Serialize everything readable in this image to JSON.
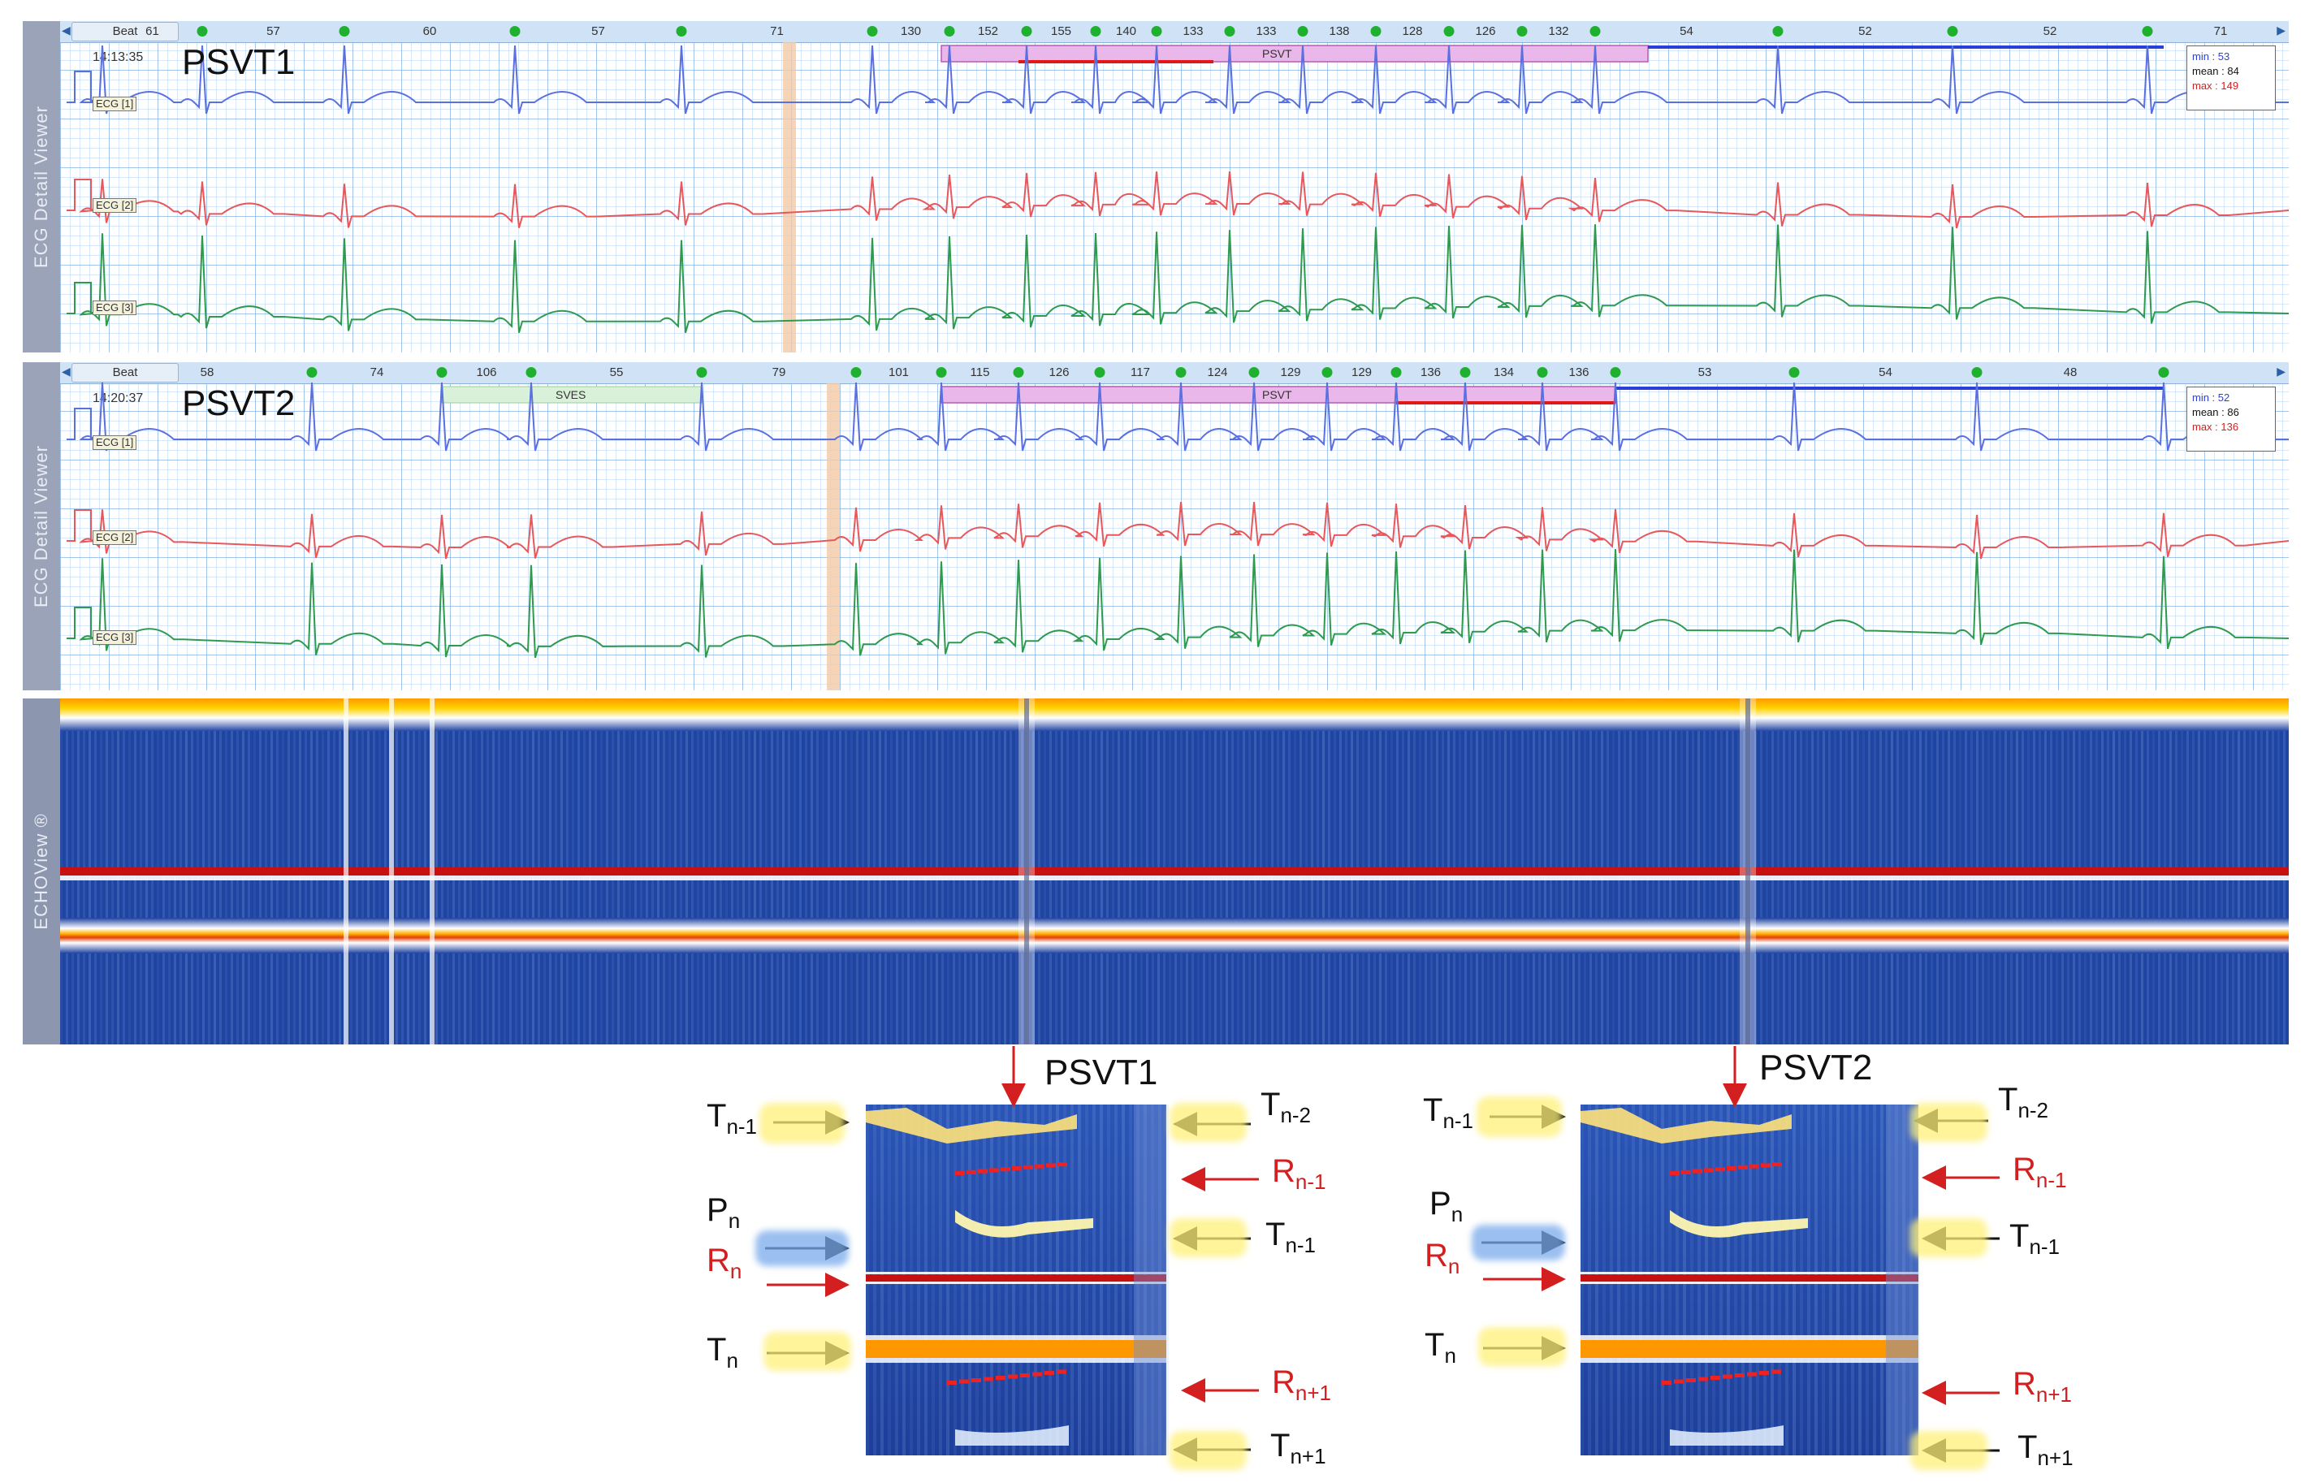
{
  "panels": [
    {
      "id": "psvt1",
      "side_title": "ECG Detail Viewer",
      "beat_label": "Beat",
      "time": "14:13:35",
      "title": "PSVT1",
      "channels": [
        "ECG [1]",
        "ECG [2]",
        "ECG [3]"
      ],
      "rr_values": [
        "61",
        "57",
        "60",
        "57",
        "71",
        "130",
        "152",
        "155",
        "140",
        "133",
        "133",
        "138",
        "128",
        "126",
        "132",
        "54",
        "52",
        "52",
        "71"
      ],
      "episode_label": "PSVT",
      "stats": {
        "min": "min : 53",
        "mean": "mean : 84",
        "max": "max : 149"
      }
    },
    {
      "id": "psvt2",
      "side_title": "ECG Detail Viewer",
      "beat_label": "Beat",
      "time": "14:20:37",
      "title": "PSVT2",
      "channels": [
        "ECG [1]",
        "ECG [2]",
        "ECG [3]"
      ],
      "rr_values": [
        "58",
        "74",
        "106",
        "55",
        "79",
        "101",
        "115",
        "126",
        "117",
        "124",
        "129",
        "129",
        "136",
        "134",
        "136",
        "53",
        "54",
        "48"
      ],
      "episode_label": "PSVT",
      "secondary_label": "SVES",
      "stats": {
        "min": "min : 52",
        "mean": "mean : 86",
        "max": "max : 136"
      }
    }
  ],
  "echo": {
    "side_title": "ECHOView ®"
  },
  "zooms": [
    {
      "title": "PSVT1",
      "labels": {
        "t_nm1_left": {
          "base": "T",
          "sub": "n-1"
        },
        "p_n": {
          "base": "P",
          "sub": "n"
        },
        "r_n": {
          "base": "R",
          "sub": "n"
        },
        "t_n": {
          "base": "T",
          "sub": "n"
        },
        "t_nm2": {
          "base": "T",
          "sub": "n-2"
        },
        "r_nm1": {
          "base": "R",
          "sub": "n-1"
        },
        "t_nm1_right": {
          "base": "T",
          "sub": "n-1"
        },
        "r_np1": {
          "base": "R",
          "sub": "n+1"
        },
        "t_np1": {
          "base": "T",
          "sub": "n+1"
        }
      }
    },
    {
      "title": "PSVT2",
      "labels": {
        "t_nm1_left": {
          "base": "T",
          "sub": "n-1"
        },
        "p_n": {
          "base": "P",
          "sub": "n"
        },
        "r_n": {
          "base": "R",
          "sub": "n"
        },
        "t_n": {
          "base": "T",
          "sub": "n"
        },
        "t_nm2": {
          "base": "T",
          "sub": "n-2"
        },
        "r_nm1": {
          "base": "R",
          "sub": "n-1"
        },
        "t_nm1_right": {
          "base": "T",
          "sub": "n-1"
        },
        "r_np1": {
          "base": "R",
          "sub": "n+1"
        },
        "t_np1": {
          "base": "T",
          "sub": "n+1"
        }
      }
    }
  ],
  "colors": {
    "ecg1": "#5a6fe0",
    "ecg2": "#e8575a",
    "ecg3": "#2e9a4e",
    "episode_fill": "#e9b7e9",
    "episode_line_red": "#e01818",
    "episode_line_blue": "#2a3fd8",
    "marker_orange": "#f3c9a5",
    "arrow_red": "#d31f1f",
    "arrow_black": "#111111"
  }
}
